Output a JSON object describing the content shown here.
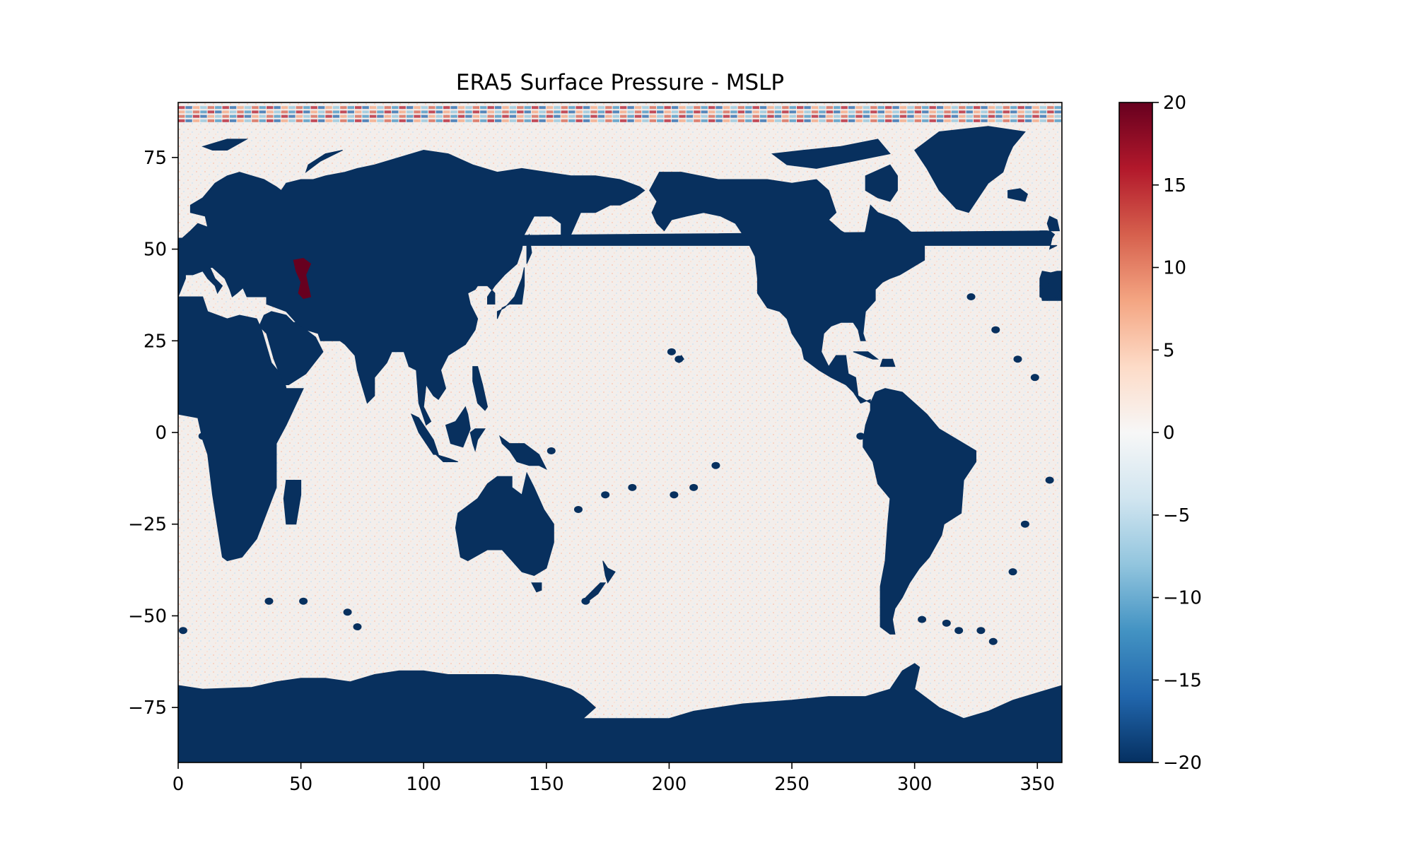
{
  "chart_data": {
    "type": "heatmap",
    "title": "ERA5 Surface Pressure - MSLP",
    "xlabel": "",
    "ylabel": "",
    "xlim": [
      0,
      360
    ],
    "ylim": [
      -90,
      90
    ],
    "x_ticks": [
      0,
      50,
      100,
      150,
      200,
      250,
      300,
      350
    ],
    "x_tick_labels": [
      "0",
      "50",
      "100",
      "150",
      "200",
      "250",
      "300",
      "350"
    ],
    "y_ticks": [
      75,
      50,
      25,
      0,
      -25,
      -50,
      -75
    ],
    "y_tick_labels": [
      "75",
      "50",
      "25",
      "0",
      "−25",
      "−50",
      "−75"
    ],
    "grid": false,
    "colormap": "RdBu_r",
    "colorbar": {
      "vmin": -20,
      "vmax": 20,
      "ticks": [
        20,
        15,
        10,
        5,
        0,
        -5,
        -10,
        -15,
        -20
      ],
      "tick_labels": [
        "20",
        "15",
        "10",
        "5",
        "0",
        "−5",
        "−10",
        "−15",
        "−20"
      ],
      "colors": [
        "#053061",
        "#2166ac",
        "#4393c3",
        "#92c5de",
        "#d1e5f0",
        "#f7f7f7",
        "#fddbc7",
        "#f4a582",
        "#d6604d",
        "#b2182b",
        "#67001f"
      ]
    },
    "field_description": {
      "ocean_values": "near 0 with small noise (approx. -3 to 3)",
      "land_values": "-20 (saturated dark blue)",
      "anomaly_values": "20 (dark red) over Caspian Sea region",
      "polar_band": "strong alternating noise near 85-90"
    },
    "colors": {
      "land": "#08305e",
      "ocean": "#f3eeeb",
      "positive_extreme": "#67001f",
      "axis": "#000000"
    }
  }
}
